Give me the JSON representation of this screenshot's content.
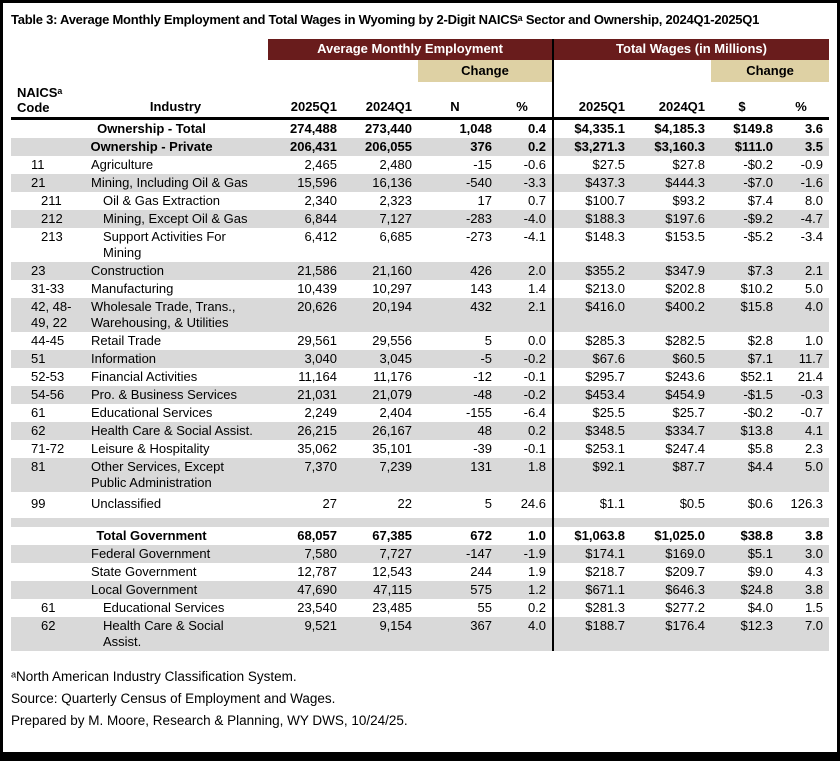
{
  "title": "Table 3: Average Monthly Employment and Total Wages in Wyoming by 2-Digit NAICSᵃ Sector and Ownership, 2024Q1-2025Q1",
  "header": {
    "group_employment": "Average Monthly Employment",
    "group_wages": "Total Wages (in Millions)",
    "change": "Change",
    "col_code": "NAICSᵃ\nCode",
    "col_industry": "Industry",
    "col_q1_2025": "2025Q1",
    "col_q1_2024": "2024Q1",
    "col_n": "N",
    "col_pct": "%",
    "col_dollar": "$"
  },
  "colors": {
    "maroon": "#691c1c",
    "tan": "#ded1a4",
    "row_shade": "#d9d9d9"
  },
  "rows": [
    {
      "code": "",
      "ind": "Ownership - Total",
      "label_row": true,
      "bold": true,
      "shaded": false,
      "e25": "274,488",
      "e24": "273,440",
      "n": "1,048",
      "pct": "0.4",
      "w25": "$4,335.1",
      "w24": "$4,185.3",
      "d": "$149.8",
      "wpct": "3.6"
    },
    {
      "code": "",
      "ind": "Ownership - Private",
      "label_row": true,
      "bold": true,
      "shaded": true,
      "e25": "206,431",
      "e24": "206,055",
      "n": "376",
      "pct": "0.2",
      "w25": "$3,271.3",
      "w24": "$3,160.3",
      "d": "$111.0",
      "wpct": "3.5"
    },
    {
      "code": "11",
      "ind": "Agriculture",
      "shaded": false,
      "e25": "2,465",
      "e24": "2,480",
      "n": "-15",
      "pct": "-0.6",
      "w25": "$27.5",
      "w24": "$27.8",
      "d": "-$0.2",
      "wpct": "-0.9"
    },
    {
      "code": "21",
      "ind": "Mining, Including Oil & Gas",
      "shaded": true,
      "e25": "15,596",
      "e24": "16,136",
      "n": "-540",
      "pct": "-3.3",
      "w25": "$437.3",
      "w24": "$444.3",
      "d": "-$7.0",
      "wpct": "-1.6"
    },
    {
      "code": "211",
      "sub": true,
      "ind": "Oil & Gas Extraction",
      "shaded": false,
      "e25": "2,340",
      "e24": "2,323",
      "n": "17",
      "pct": "0.7",
      "w25": "$100.7",
      "w24": "$93.2",
      "d": "$7.4",
      "wpct": "8.0"
    },
    {
      "code": "212",
      "sub": true,
      "ind": "Mining, Except Oil & Gas",
      "shaded": true,
      "e25": "6,844",
      "e24": "7,127",
      "n": "-283",
      "pct": "-4.0",
      "w25": "$188.3",
      "w24": "$197.6",
      "d": "-$9.2",
      "wpct": "-4.7"
    },
    {
      "code": "213",
      "sub": true,
      "ind": "Support Activities For\nMining",
      "shaded": false,
      "e25": "6,412",
      "e24": "6,685",
      "n": "-273",
      "pct": "-4.1",
      "w25": "$148.3",
      "w24": "$153.5",
      "d": "-$5.2",
      "wpct": "-3.4"
    },
    {
      "code": "23",
      "ind": "Construction",
      "shaded": true,
      "e25": "21,586",
      "e24": "21,160",
      "n": "426",
      "pct": "2.0",
      "w25": "$355.2",
      "w24": "$347.9",
      "d": "$7.3",
      "wpct": "2.1"
    },
    {
      "code": "31-33",
      "ind": "Manufacturing",
      "shaded": false,
      "e25": "10,439",
      "e24": "10,297",
      "n": "143",
      "pct": "1.4",
      "w25": "$213.0",
      "w24": "$202.8",
      "d": "$10.2",
      "wpct": "5.0"
    },
    {
      "code": "42, 48-\n49, 22",
      "ind": "Wholesale Trade, Trans.,\nWarehousing, & Utilities",
      "shaded": true,
      "e25": "20,626",
      "e24": "20,194",
      "n": "432",
      "pct": "2.1",
      "w25": "$416.0",
      "w24": "$400.2",
      "d": "$15.8",
      "wpct": "4.0"
    },
    {
      "code": "44-45",
      "ind": "Retail Trade",
      "shaded": false,
      "e25": "29,561",
      "e24": "29,556",
      "n": "5",
      "pct": "0.0",
      "w25": "$285.3",
      "w24": "$282.5",
      "d": "$2.8",
      "wpct": "1.0"
    },
    {
      "code": "51",
      "ind": "Information",
      "shaded": true,
      "e25": "3,040",
      "e24": "3,045",
      "n": "-5",
      "pct": "-0.2",
      "w25": "$67.6",
      "w24": "$60.5",
      "d": "$7.1",
      "wpct": "11.7"
    },
    {
      "code": "52-53",
      "ind": "Financial Activities",
      "shaded": false,
      "e25": "11,164",
      "e24": "11,176",
      "n": "-12",
      "pct": "-0.1",
      "w25": "$295.7",
      "w24": "$243.6",
      "d": "$52.1",
      "wpct": "21.4"
    },
    {
      "code": "54-56",
      "ind": "Pro. & Business Services",
      "shaded": true,
      "e25": "21,031",
      "e24": "21,079",
      "n": "-48",
      "pct": "-0.2",
      "w25": "$453.4",
      "w24": "$454.9",
      "d": "-$1.5",
      "wpct": "-0.3"
    },
    {
      "code": "61",
      "ind": "Educational Services",
      "shaded": false,
      "e25": "2,249",
      "e24": "2,404",
      "n": "-155",
      "pct": "-6.4",
      "w25": "$25.5",
      "w24": "$25.7",
      "d": "-$0.2",
      "wpct": "-0.7"
    },
    {
      "code": "62",
      "ind": "Health Care & Social Assist.",
      "shaded": true,
      "e25": "26,215",
      "e24": "26,167",
      "n": "48",
      "pct": "0.2",
      "w25": "$348.5",
      "w24": "$334.7",
      "d": "$13.8",
      "wpct": "4.1"
    },
    {
      "code": "71-72",
      "ind": "Leisure & Hospitality",
      "shaded": false,
      "e25": "35,062",
      "e24": "35,101",
      "n": "-39",
      "pct": "-0.1",
      "w25": "$253.1",
      "w24": "$247.4",
      "d": "$5.8",
      "wpct": "2.3"
    },
    {
      "code": "81",
      "ind": "Other Services, Except\nPublic Administration",
      "shaded": true,
      "e25": "7,370",
      "e24": "7,239",
      "n": "131",
      "pct": "1.8",
      "w25": "$92.1",
      "w24": "$87.7",
      "d": "$4.4",
      "wpct": "5.0"
    },
    {
      "code": "99",
      "ind": "Unclassified",
      "tall": true,
      "shaded": false,
      "e25": "27",
      "e24": "22",
      "n": "5",
      "pct": "24.6",
      "w25": "$1.1",
      "w24": "$0.5",
      "d": "$0.6",
      "wpct": "126.3"
    },
    {
      "spacer": true,
      "shaded": true
    },
    {
      "code": "",
      "ind": "Total Government",
      "label_row": true,
      "bold": true,
      "shaded": false,
      "e25": "68,057",
      "e24": "67,385",
      "n": "672",
      "pct": "1.0",
      "w25": "$1,063.8",
      "w24": "$1,025.0",
      "d": "$38.8",
      "wpct": "3.8"
    },
    {
      "code": "",
      "ind": "Federal Government",
      "shaded": true,
      "e25": "7,580",
      "e24": "7,727",
      "n": "-147",
      "pct": "-1.9",
      "w25": "$174.1",
      "w24": "$169.0",
      "d": "$5.1",
      "wpct": "3.0"
    },
    {
      "code": "",
      "ind": "State Government",
      "shaded": false,
      "e25": "12,787",
      "e24": "12,543",
      "n": "244",
      "pct": "1.9",
      "w25": "$218.7",
      "w24": "$209.7",
      "d": "$9.0",
      "wpct": "4.3"
    },
    {
      "code": "",
      "ind": "Local Government",
      "shaded": true,
      "e25": "47,690",
      "e24": "47,115",
      "n": "575",
      "pct": "1.2",
      "w25": "$671.1",
      "w24": "$646.3",
      "d": "$24.8",
      "wpct": "3.8"
    },
    {
      "code": "61",
      "sub": true,
      "ind": "Educational Services",
      "shaded": false,
      "e25": "23,540",
      "e24": "23,485",
      "n": "55",
      "pct": "0.2",
      "w25": "$281.3",
      "w24": "$277.2",
      "d": "$4.0",
      "wpct": "1.5"
    },
    {
      "code": "62",
      "sub": true,
      "ind": "Health Care & Social Assist.",
      "shaded": true,
      "e25": "9,521",
      "e24": "9,154",
      "n": "367",
      "pct": "4.0",
      "w25": "$188.7",
      "w24": "$176.4",
      "d": "$12.3",
      "wpct": "7.0"
    }
  ],
  "footnotes": [
    "ᵃNorth American Industry Classification System.",
    "Source: Quarterly Census of Employment and Wages.",
    "Prepared by M. Moore, Research & Planning, WY DWS, 10/24/25."
  ]
}
